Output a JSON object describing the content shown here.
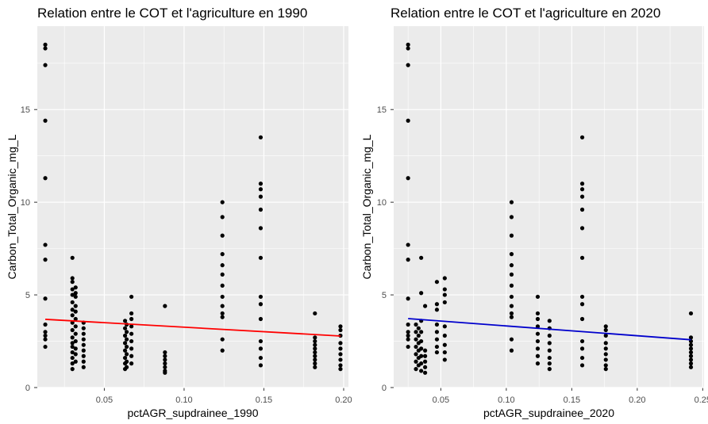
{
  "chart_data": [
    {
      "type": "scatter",
      "title": "Relation entre le COT et l'agriculture en 1990",
      "xlabel": "pctAGR_supdrainee_1990",
      "ylabel": "Carbon_Total_Organic_mg_L",
      "xlim": [
        0.008,
        0.203
      ],
      "ylim": [
        0,
        19.5
      ],
      "xticks": [
        0.05,
        0.1,
        0.15,
        0.2
      ],
      "xtick_labels": [
        "0.05",
        "0.10",
        "0.15",
        "0.20"
      ],
      "yticks": [
        0,
        5,
        10,
        15
      ],
      "ytick_labels": [
        "0",
        "5",
        "10",
        "15"
      ],
      "grid": true,
      "panel_background": "#ebebeb",
      "point_color": "#000000",
      "trend_line": {
        "color": "#ff0000",
        "x": [
          0.013,
          0.198
        ],
        "y": [
          3.68,
          2.78
        ]
      },
      "points": [
        [
          0.013,
          18.5
        ],
        [
          0.013,
          18.3
        ],
        [
          0.013,
          17.4
        ],
        [
          0.013,
          14.4
        ],
        [
          0.013,
          11.3
        ],
        [
          0.013,
          7.7
        ],
        [
          0.013,
          6.9
        ],
        [
          0.013,
          4.8
        ],
        [
          0.013,
          3.4
        ],
        [
          0.013,
          3.0
        ],
        [
          0.013,
          2.8
        ],
        [
          0.013,
          2.6
        ],
        [
          0.013,
          2.2
        ],
        [
          0.03,
          7.0
        ],
        [
          0.03,
          5.9
        ],
        [
          0.03,
          5.7
        ],
        [
          0.03,
          5.3
        ],
        [
          0.03,
          5.0
        ],
        [
          0.03,
          4.6
        ],
        [
          0.03,
          4.2
        ],
        [
          0.03,
          3.9
        ],
        [
          0.03,
          3.5
        ],
        [
          0.03,
          3.1
        ],
        [
          0.03,
          2.7
        ],
        [
          0.03,
          2.4
        ],
        [
          0.03,
          2.2
        ],
        [
          0.03,
          1.9
        ],
        [
          0.03,
          1.6
        ],
        [
          0.03,
          1.3
        ],
        [
          0.03,
          1.0
        ],
        [
          0.032,
          5.4
        ],
        [
          0.032,
          5.1
        ],
        [
          0.032,
          4.9
        ],
        [
          0.032,
          4.4
        ],
        [
          0.032,
          4.1
        ],
        [
          0.032,
          3.7
        ],
        [
          0.032,
          3.3
        ],
        [
          0.032,
          2.9
        ],
        [
          0.032,
          2.5
        ],
        [
          0.032,
          2.1
        ],
        [
          0.032,
          1.8
        ],
        [
          0.032,
          1.4
        ],
        [
          0.037,
          3.5
        ],
        [
          0.037,
          3.2
        ],
        [
          0.037,
          2.9
        ],
        [
          0.037,
          2.6
        ],
        [
          0.037,
          2.3
        ],
        [
          0.037,
          2.0
        ],
        [
          0.037,
          1.7
        ],
        [
          0.037,
          1.4
        ],
        [
          0.037,
          1.1
        ],
        [
          0.063,
          3.6
        ],
        [
          0.063,
          3.2
        ],
        [
          0.063,
          2.8
        ],
        [
          0.063,
          2.4
        ],
        [
          0.063,
          2.0
        ],
        [
          0.063,
          1.6
        ],
        [
          0.063,
          1.3
        ],
        [
          0.063,
          1.0
        ],
        [
          0.064,
          3.4
        ],
        [
          0.064,
          3.0
        ],
        [
          0.064,
          2.6
        ],
        [
          0.064,
          2.2
        ],
        [
          0.064,
          1.8
        ],
        [
          0.064,
          1.4
        ],
        [
          0.064,
          1.1
        ],
        [
          0.067,
          4.9
        ],
        [
          0.067,
          4.0
        ],
        [
          0.067,
          3.7
        ],
        [
          0.067,
          3.3
        ],
        [
          0.067,
          2.9
        ],
        [
          0.067,
          2.5
        ],
        [
          0.067,
          2.1
        ],
        [
          0.067,
          1.7
        ],
        [
          0.067,
          1.3
        ],
        [
          0.088,
          4.4
        ],
        [
          0.088,
          1.9
        ],
        [
          0.088,
          1.7
        ],
        [
          0.088,
          1.5
        ],
        [
          0.088,
          1.3
        ],
        [
          0.088,
          1.1
        ],
        [
          0.088,
          0.9
        ],
        [
          0.088,
          0.8
        ],
        [
          0.124,
          10.0
        ],
        [
          0.124,
          9.2
        ],
        [
          0.124,
          8.2
        ],
        [
          0.124,
          7.2
        ],
        [
          0.124,
          6.6
        ],
        [
          0.124,
          6.1
        ],
        [
          0.124,
          5.5
        ],
        [
          0.124,
          4.9
        ],
        [
          0.124,
          4.4
        ],
        [
          0.124,
          4.0
        ],
        [
          0.124,
          3.8
        ],
        [
          0.124,
          2.6
        ],
        [
          0.124,
          2.0
        ],
        [
          0.148,
          13.5
        ],
        [
          0.148,
          11.0
        ],
        [
          0.148,
          10.7
        ],
        [
          0.148,
          10.3
        ],
        [
          0.148,
          9.6
        ],
        [
          0.148,
          8.6
        ],
        [
          0.148,
          7.0
        ],
        [
          0.148,
          4.9
        ],
        [
          0.148,
          4.5
        ],
        [
          0.148,
          3.7
        ],
        [
          0.148,
          2.5
        ],
        [
          0.148,
          2.1
        ],
        [
          0.148,
          1.6
        ],
        [
          0.148,
          1.2
        ],
        [
          0.182,
          4.0
        ],
        [
          0.182,
          2.7
        ],
        [
          0.182,
          2.5
        ],
        [
          0.182,
          2.3
        ],
        [
          0.182,
          2.1
        ],
        [
          0.182,
          1.9
        ],
        [
          0.182,
          1.7
        ],
        [
          0.182,
          1.5
        ],
        [
          0.182,
          1.3
        ],
        [
          0.182,
          1.1
        ],
        [
          0.198,
          3.3
        ],
        [
          0.198,
          3.1
        ],
        [
          0.198,
          2.8
        ],
        [
          0.198,
          2.4
        ],
        [
          0.198,
          2.1
        ],
        [
          0.198,
          1.8
        ],
        [
          0.198,
          1.5
        ],
        [
          0.198,
          1.2
        ],
        [
          0.198,
          1.0
        ]
      ]
    },
    {
      "type": "scatter",
      "title": "Relation entre le COT et l'agriculture en 2020",
      "xlabel": "pctAGR_supdrainee_2020",
      "ylabel": "Carbon_Total_Organic_mg_L",
      "xlim": [
        0.014,
        0.251
      ],
      "ylim": [
        0,
        19.5
      ],
      "xticks": [
        0.05,
        0.1,
        0.15,
        0.2,
        0.25
      ],
      "xtick_labels": [
        "0.05",
        "0.10",
        "0.15",
        "0.20",
        "0.25"
      ],
      "yticks": [
        0,
        5,
        10,
        15
      ],
      "ytick_labels": [
        "0",
        "5",
        "10",
        "15"
      ],
      "grid": true,
      "panel_background": "#ebebeb",
      "point_color": "#000000",
      "trend_line": {
        "color": "#0000cc",
        "x": [
          0.025,
          0.241
        ],
        "y": [
          3.72,
          2.58
        ]
      },
      "points": [
        [
          0.025,
          18.5
        ],
        [
          0.025,
          18.3
        ],
        [
          0.025,
          17.4
        ],
        [
          0.025,
          14.4
        ],
        [
          0.025,
          11.3
        ],
        [
          0.025,
          7.7
        ],
        [
          0.025,
          6.9
        ],
        [
          0.025,
          4.8
        ],
        [
          0.025,
          3.4
        ],
        [
          0.025,
          3.0
        ],
        [
          0.025,
          2.8
        ],
        [
          0.025,
          2.6
        ],
        [
          0.025,
          2.2
        ],
        [
          0.031,
          3.4
        ],
        [
          0.031,
          3.0
        ],
        [
          0.031,
          2.6
        ],
        [
          0.031,
          2.2
        ],
        [
          0.031,
          1.8
        ],
        [
          0.031,
          1.4
        ],
        [
          0.031,
          1.0
        ],
        [
          0.033,
          3.2
        ],
        [
          0.033,
          2.8
        ],
        [
          0.033,
          2.4
        ],
        [
          0.033,
          2.0
        ],
        [
          0.033,
          1.6
        ],
        [
          0.033,
          1.2
        ],
        [
          0.035,
          7.0
        ],
        [
          0.035,
          5.1
        ],
        [
          0.035,
          3.6
        ],
        [
          0.035,
          3.0
        ],
        [
          0.035,
          2.5
        ],
        [
          0.035,
          2.1
        ],
        [
          0.035,
          1.7
        ],
        [
          0.035,
          1.3
        ],
        [
          0.035,
          0.9
        ],
        [
          0.038,
          4.4
        ],
        [
          0.038,
          2.0
        ],
        [
          0.038,
          1.7
        ],
        [
          0.038,
          1.4
        ],
        [
          0.038,
          1.1
        ],
        [
          0.038,
          0.8
        ],
        [
          0.047,
          5.7
        ],
        [
          0.047,
          4.5
        ],
        [
          0.047,
          4.2
        ],
        [
          0.047,
          3.4
        ],
        [
          0.047,
          3.0
        ],
        [
          0.047,
          2.6
        ],
        [
          0.047,
          2.2
        ],
        [
          0.047,
          1.9
        ],
        [
          0.053,
          5.9
        ],
        [
          0.053,
          5.3
        ],
        [
          0.053,
          5.0
        ],
        [
          0.053,
          4.6
        ],
        [
          0.053,
          3.3
        ],
        [
          0.053,
          2.8
        ],
        [
          0.053,
          2.3
        ],
        [
          0.053,
          1.9
        ],
        [
          0.053,
          1.5
        ],
        [
          0.104,
          10.0
        ],
        [
          0.104,
          9.2
        ],
        [
          0.104,
          8.2
        ],
        [
          0.104,
          7.2
        ],
        [
          0.104,
          6.6
        ],
        [
          0.104,
          6.1
        ],
        [
          0.104,
          5.5
        ],
        [
          0.104,
          4.9
        ],
        [
          0.104,
          4.4
        ],
        [
          0.104,
          4.0
        ],
        [
          0.104,
          3.8
        ],
        [
          0.104,
          2.6
        ],
        [
          0.104,
          2.0
        ],
        [
          0.124,
          4.9
        ],
        [
          0.124,
          4.0
        ],
        [
          0.124,
          3.7
        ],
        [
          0.124,
          3.3
        ],
        [
          0.124,
          2.9
        ],
        [
          0.124,
          2.5
        ],
        [
          0.124,
          2.1
        ],
        [
          0.124,
          1.7
        ],
        [
          0.124,
          1.3
        ],
        [
          0.133,
          3.6
        ],
        [
          0.133,
          3.2
        ],
        [
          0.133,
          2.8
        ],
        [
          0.133,
          2.4
        ],
        [
          0.133,
          2.0
        ],
        [
          0.133,
          1.6
        ],
        [
          0.133,
          1.3
        ],
        [
          0.133,
          1.0
        ],
        [
          0.158,
          13.5
        ],
        [
          0.158,
          11.0
        ],
        [
          0.158,
          10.7
        ],
        [
          0.158,
          10.3
        ],
        [
          0.158,
          9.6
        ],
        [
          0.158,
          8.6
        ],
        [
          0.158,
          7.0
        ],
        [
          0.158,
          4.9
        ],
        [
          0.158,
          4.5
        ],
        [
          0.158,
          3.7
        ],
        [
          0.158,
          2.5
        ],
        [
          0.158,
          2.1
        ],
        [
          0.158,
          1.6
        ],
        [
          0.158,
          1.2
        ],
        [
          0.176,
          3.3
        ],
        [
          0.176,
          3.1
        ],
        [
          0.176,
          2.8
        ],
        [
          0.176,
          2.4
        ],
        [
          0.176,
          2.1
        ],
        [
          0.176,
          1.8
        ],
        [
          0.176,
          1.5
        ],
        [
          0.176,
          1.2
        ],
        [
          0.176,
          1.0
        ],
        [
          0.241,
          4.0
        ],
        [
          0.241,
          2.7
        ],
        [
          0.241,
          2.5
        ],
        [
          0.241,
          2.3
        ],
        [
          0.241,
          2.1
        ],
        [
          0.241,
          1.9
        ],
        [
          0.241,
          1.7
        ],
        [
          0.241,
          1.5
        ],
        [
          0.241,
          1.3
        ],
        [
          0.241,
          1.1
        ]
      ]
    }
  ]
}
